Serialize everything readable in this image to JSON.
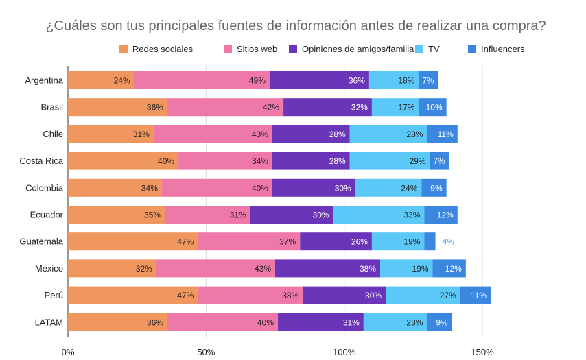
{
  "chart_data": {
    "type": "bar",
    "orientation": "horizontal",
    "stacked": true,
    "title": "¿Cuáles son tus principales fuentes de información antes de realizar una compra?",
    "categories": [
      "Argentina",
      "Brasil",
      "Chile",
      "Costa Rica",
      "Colombia",
      "Ecuador",
      "Guatemala",
      "México",
      "Perú",
      "LATAM"
    ],
    "series": [
      {
        "name": "Redes sociales",
        "color": "#f0965f",
        "label_color": "#222222",
        "values": [
          24,
          36,
          31,
          40,
          34,
          35,
          47,
          32,
          47,
          36
        ]
      },
      {
        "name": "Sitios web",
        "color": "#ee78a8",
        "label_color": "#222222",
        "values": [
          49,
          42,
          43,
          34,
          40,
          31,
          37,
          43,
          38,
          40
        ]
      },
      {
        "name": "Opiniones de amigos/familia",
        "color": "#6a35b8",
        "label_color": "#ffffff",
        "values": [
          36,
          32,
          28,
          28,
          30,
          30,
          26,
          38,
          30,
          31
        ]
      },
      {
        "name": "TV",
        "color": "#5bc8f7",
        "label_color": "#222222",
        "values": [
          18,
          17,
          28,
          29,
          24,
          33,
          19,
          19,
          27,
          23
        ]
      },
      {
        "name": "Influencers",
        "color": "#3b87e0",
        "label_color": "#ffffff",
        "values": [
          7,
          10,
          11,
          7,
          9,
          12,
          4,
          12,
          11,
          9
        ]
      }
    ],
    "outside_label_color": "#3b87e0",
    "value_suffix": "%",
    "xlim": [
      0,
      150
    ],
    "xticks": [
      0,
      50,
      100,
      150
    ],
    "xtick_labels": [
      "0%",
      "50%",
      "100%",
      "150%"
    ],
    "grid": true,
    "legend_position": "top"
  }
}
